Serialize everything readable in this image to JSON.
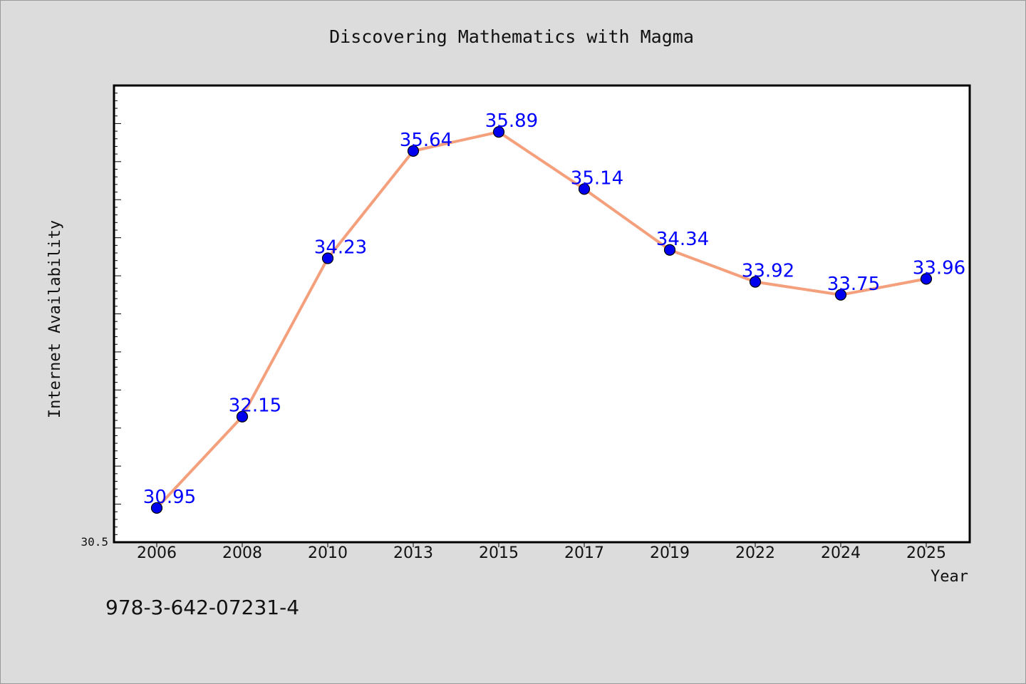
{
  "chart_data": {
    "type": "line",
    "title": "Discovering Mathematics with Magma",
    "xlabel": "Year",
    "ylabel": "Internet Availability",
    "categories": [
      "2006",
      "2008",
      "2010",
      "2013",
      "2015",
      "2017",
      "2019",
      "2022",
      "2024",
      "2025"
    ],
    "series": [
      {
        "values": [
          30.95,
          32.15,
          34.23,
          35.64,
          35.89,
          35.14,
          34.34,
          33.92,
          33.75,
          33.96
        ]
      }
    ],
    "data_labels": [
      "30.95",
      "32.15",
      "34.23",
      "35.64",
      "35.89",
      "35.14",
      "34.34",
      "33.92",
      "33.75",
      "33.96"
    ],
    "y_tick_labels": [
      "30.5"
    ],
    "ylim": [
      30.5,
      36.5
    ],
    "grid": false,
    "legend": "none",
    "colors": {
      "line": "#f4a07c",
      "marker": "#0000ee",
      "data_label": "#0000ff",
      "plot_background": "#ffffff",
      "figure_background": "#dcdcdc"
    }
  },
  "footer": {
    "isbn": "978-3-642-07231-4"
  }
}
